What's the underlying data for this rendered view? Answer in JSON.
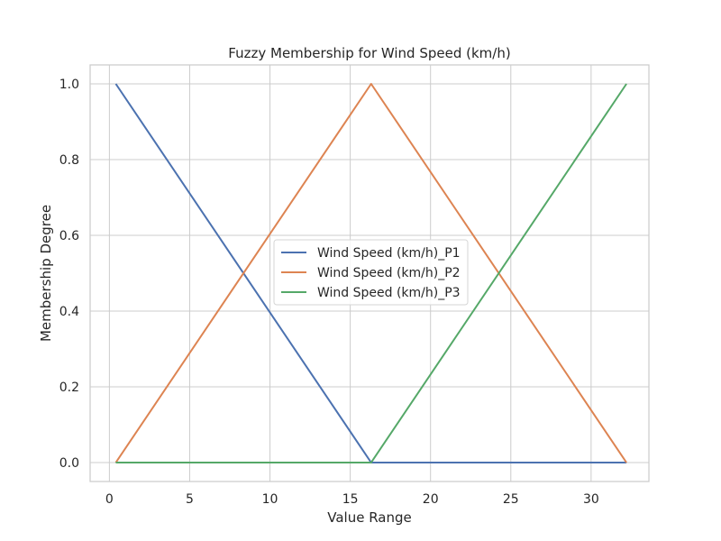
{
  "chart_data": {
    "type": "line",
    "title": "Fuzzy Membership for Wind Speed (km/h)",
    "xlabel": "Value Range",
    "ylabel": "Membership Degree",
    "xlim": [
      -1.2,
      33.6
    ],
    "ylim": [
      -0.05,
      1.05
    ],
    "xticks": [
      0,
      5,
      10,
      15,
      20,
      25,
      30
    ],
    "yticks": [
      0.0,
      0.2,
      0.4,
      0.6,
      0.8,
      1.0
    ],
    "xtick_labels": [
      "0",
      "5",
      "10",
      "15",
      "20",
      "25",
      "30"
    ],
    "ytick_labels": [
      "0.0",
      "0.2",
      "0.4",
      "0.6",
      "0.8",
      "1.0"
    ],
    "grid": true,
    "legend_position": "center",
    "series": [
      {
        "name": "Wind Speed (km/h)_P1",
        "color": "#4c72b0",
        "x": [
          0.4,
          16.3,
          32.2
        ],
        "y": [
          1.0,
          0.0,
          0.0
        ]
      },
      {
        "name": "Wind Speed (km/h)_P2",
        "color": "#dd8452",
        "x": [
          0.4,
          16.3,
          32.2
        ],
        "y": [
          0.0,
          1.0,
          0.0
        ]
      },
      {
        "name": "Wind Speed (km/h)_P3",
        "color": "#55a868",
        "x": [
          0.4,
          16.3,
          32.2
        ],
        "y": [
          0.0,
          0.0,
          1.0
        ]
      }
    ]
  }
}
